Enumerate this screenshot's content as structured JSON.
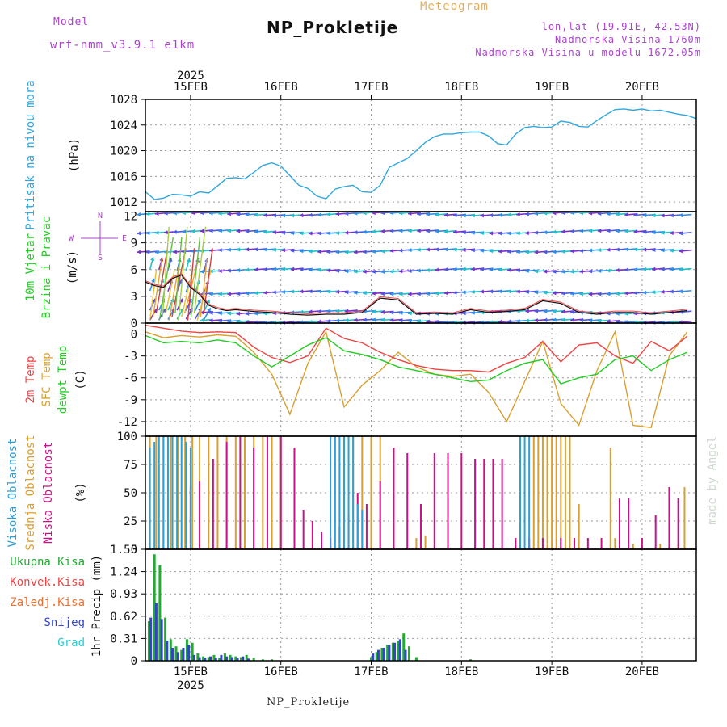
{
  "header": {
    "model_label": "Model",
    "model_name": "wrf-nmm_v3.9.1 e1km",
    "title": "NP_Prokletije",
    "meteogram_label": "Meteogram",
    "lonlat": "lon,lat (19.91E, 42.53N)",
    "elevation": "Nadmorska Visina 1760m",
    "model_elevation": "Nadmorska Visina u modelu 1672.05m",
    "footer_title": "NP_Prokletije",
    "watermark": "made by Angel"
  },
  "colors": {
    "pressure": "#2fa8e0",
    "temp2m": "#ee4444",
    "sfc": "#d9a030",
    "dewpt": "#22cc22",
    "high_cloud": "#2a9fd8",
    "mid_cloud": "#d9a030",
    "low_cloud": "#cc1188",
    "total_precip": "#22aa33",
    "snow": "#3344cc",
    "purple_text": "#aa44cc",
    "orange_text": "#e0b060"
  },
  "chart_data": [
    {
      "type": "line",
      "name": "pressure",
      "ylabel_main": "Pritisak na nivou mora",
      "ylabel_unit": "(hPa)",
      "ylim": [
        1010.5,
        1028
      ],
      "yticks": [
        1012,
        1016,
        1020,
        1024,
        1028
      ],
      "x": [
        0,
        0.1,
        0.2,
        0.3,
        0.4,
        0.5,
        0.6,
        0.7,
        0.8,
        0.9,
        1.0,
        1.1,
        1.2,
        1.3,
        1.4,
        1.5,
        1.6,
        1.7,
        1.8,
        1.9,
        2.0,
        2.1,
        2.2,
        2.3,
        2.4,
        2.5,
        2.6,
        2.7,
        2.8,
        2.9,
        3.0,
        3.1,
        3.2,
        3.3,
        3.4,
        3.5,
        3.6,
        3.7,
        3.8,
        3.9,
        4.0,
        4.1,
        4.2,
        4.3,
        4.4,
        4.5,
        4.6,
        4.7,
        4.8,
        4.9,
        5.0,
        5.1,
        5.2,
        5.3,
        5.4,
        5.5,
        5.6,
        5.7,
        5.8,
        5.9,
        6.0,
        6.1
      ],
      "values": [
        1013.6,
        1012.4,
        1012.6,
        1013.2,
        1013.1,
        1012.9,
        1013.6,
        1013.4,
        1014.5,
        1015.7,
        1015.8,
        1015.6,
        1016.6,
        1017.7,
        1018.1,
        1017.6,
        1016.1,
        1014.6,
        1014.1,
        1012.9,
        1012.5,
        1014.0,
        1014.4,
        1014.6,
        1013.6,
        1013.5,
        1014.6,
        1017.4,
        1018.1,
        1018.8,
        1020.0,
        1021.3,
        1022.2,
        1022.6,
        1022.6,
        1022.8,
        1022.9,
        1022.9,
        1022.3,
        1021.1,
        1020.9,
        1022.6,
        1023.6,
        1023.8,
        1023.6,
        1023.7,
        1024.6,
        1024.4,
        1023.8,
        1023.7,
        1024.7,
        1025.6,
        1026.4,
        1026.5,
        1026.3,
        1026.5,
        1026.2,
        1026.3,
        1026.0,
        1025.7,
        1025.5,
        1025.0
      ]
    },
    {
      "type": "line",
      "name": "wind",
      "ylabel_main": "10m Vjetar",
      "ylabel_sub": "Brzina i Pravac",
      "ylabel_unit": "(m/s)",
      "compass_n": "N",
      "compass_s": "S",
      "compass_w": "W",
      "compass_e": "E",
      "ylim": [
        0,
        12.5
      ],
      "yticks": [
        0,
        3,
        6,
        9,
        12
      ],
      "levels": [
        0.3,
        1.3,
        3.5,
        6.0,
        8.2,
        10.3,
        12.3
      ],
      "speed_x": [
        0,
        0.1,
        0.2,
        0.3,
        0.4,
        0.5,
        0.6,
        0.7,
        0.8,
        0.9,
        1.0,
        1.2,
        1.4,
        1.6,
        1.8,
        2.0,
        2.2,
        2.4,
        2.6,
        2.8,
        3.0,
        3.2,
        3.4,
        3.6,
        3.8,
        4.0,
        4.2,
        4.4,
        4.6,
        4.8,
        5.0,
        5.2,
        5.4,
        5.6,
        5.8,
        6.0
      ],
      "speed_values": [
        4.6,
        4.2,
        4.0,
        5.0,
        5.4,
        4.0,
        3.2,
        2.0,
        1.6,
        1.4,
        1.5,
        1.3,
        1.2,
        1.0,
        0.9,
        1.0,
        1.0,
        1.2,
        2.8,
        2.6,
        1.0,
        1.1,
        1.0,
        1.5,
        1.2,
        1.3,
        1.5,
        2.5,
        2.2,
        1.2,
        1.0,
        1.2,
        1.2,
        1.0,
        1.2,
        1.4
      ]
    },
    {
      "type": "line",
      "name": "temperature",
      "ylabel_t2m": "2m Temp",
      "ylabel_sfc": "SFC Temp",
      "ylabel_dew": "dewpt Temp",
      "ylabel_unit": "(C)",
      "ylim": [
        -14,
        1.5
      ],
      "yticks": [
        0,
        -3,
        -6,
        -9,
        -12
      ],
      "x": [
        0,
        0.2,
        0.4,
        0.6,
        0.8,
        1.0,
        1.2,
        1.4,
        1.6,
        1.8,
        2.0,
        2.2,
        2.4,
        2.6,
        2.8,
        3.0,
        3.2,
        3.4,
        3.6,
        3.8,
        4.0,
        4.2,
        4.4,
        4.6,
        4.8,
        5.0,
        5.2,
        5.4,
        5.6,
        5.8,
        6.0
      ],
      "series": [
        {
          "name": "2m Temp",
          "values": [
            1.2,
            0.8,
            0.4,
            0.2,
            0.3,
            0.2,
            -1.8,
            -3.2,
            -3.9,
            -3.0,
            0.8,
            -0.6,
            -1.2,
            -2.5,
            -3.5,
            -4.3,
            -4.8,
            -5.0,
            -5.0,
            -5.2,
            -4.0,
            -3.2,
            -1.0,
            -3.8,
            -1.5,
            -1.2,
            -3.0,
            -4.0,
            -1.0,
            -2.3,
            -0.3
          ]
        },
        {
          "name": "SFC Temp",
          "values": [
            0.3,
            -0.5,
            -0.2,
            -0.4,
            -0.1,
            -0.3,
            -2.5,
            -5.5,
            -11.0,
            -4.0,
            0.3,
            -10.0,
            -7.0,
            -5.0,
            -2.5,
            -4.5,
            -5.5,
            -5.8,
            -5.5,
            -8.0,
            -12.0,
            -6.5,
            -1.0,
            -9.5,
            -12.5,
            -5.0,
            0.3,
            -12.5,
            -12.8,
            -3.0,
            0.3
          ]
        },
        {
          "name": "dewpt Temp",
          "values": [
            -0.2,
            -1.2,
            -1.0,
            -1.2,
            -0.8,
            -1.2,
            -3.0,
            -4.5,
            -3.0,
            -1.5,
            -0.5,
            -2.3,
            -2.8,
            -3.5,
            -4.5,
            -5.0,
            -5.5,
            -6.0,
            -6.5,
            -6.3,
            -5.0,
            -4.0,
            -3.5,
            -6.8,
            -6.0,
            -5.5,
            -3.5,
            -3.0,
            -5.0,
            -3.5,
            -2.5
          ]
        }
      ]
    },
    {
      "type": "bar",
      "name": "clouds",
      "ylabel_high": "Visoka Oblacnost",
      "ylabel_mid": "Srednja Oblacnost",
      "ylabel_low": "Niska Oblacnost",
      "ylabel_unit": "(%)",
      "ylim": [
        0,
        100
      ],
      "yticks": [
        0,
        25,
        50,
        75,
        100
      ],
      "series": [
        {
          "name": "Visoka Oblacnost",
          "x": [
            0.05,
            0.1,
            0.15,
            0.2,
            0.25,
            0.3,
            0.35,
            0.4,
            0.45,
            0.5,
            2.05,
            2.1,
            2.15,
            2.2,
            2.25,
            2.3,
            2.35,
            2.4,
            4.15,
            4.2,
            4.25
          ],
          "values": [
            90,
            95,
            100,
            100,
            100,
            100,
            100,
            100,
            95,
            90,
            100,
            100,
            100,
            100,
            100,
            100,
            40,
            35,
            100,
            100,
            100
          ]
        },
        {
          "name": "Srednja Oblacnost",
          "x": [
            0.05,
            0.12,
            0.2,
            0.28,
            0.36,
            0.44,
            0.52,
            0.6,
            0.7,
            0.8,
            0.9,
            1.0,
            1.1,
            1.2,
            1.3,
            1.4,
            1.5,
            2.1,
            2.2,
            2.3,
            2.4,
            2.5,
            2.6,
            3.0,
            3.1,
            4.3,
            4.35,
            4.4,
            4.45,
            4.5,
            4.55,
            4.6,
            4.65,
            4.7,
            4.8,
            5.15,
            5.2,
            5.4,
            5.7,
            5.8,
            5.9,
            5.97
          ],
          "values": [
            100,
            100,
            100,
            100,
            100,
            100,
            100,
            100,
            100,
            100,
            100,
            100,
            100,
            100,
            100,
            100,
            100,
            100,
            100,
            100,
            100,
            100,
            100,
            10,
            12,
            100,
            100,
            100,
            100,
            100,
            100,
            100,
            100,
            100,
            40,
            90,
            10,
            5,
            5,
            5,
            5,
            55
          ]
        },
        {
          "name": "Niska Oblacnost",
          "x": [
            0.5,
            0.6,
            0.75,
            0.9,
            1.05,
            1.2,
            1.35,
            1.5,
            1.65,
            1.75,
            1.85,
            1.95,
            2.05,
            2.15,
            2.25,
            2.35,
            2.45,
            2.6,
            2.75,
            2.9,
            3.05,
            3.2,
            3.35,
            3.5,
            3.65,
            3.75,
            3.85,
            3.95,
            4.1,
            4.25,
            4.4,
            4.6,
            4.75,
            4.9,
            5.05,
            5.25,
            5.35,
            5.5,
            5.65,
            5.8,
            5.9
          ],
          "values": [
            55,
            60,
            80,
            95,
            100,
            90,
            100,
            100,
            90,
            35,
            25,
            15,
            10,
            20,
            30,
            50,
            40,
            60,
            90,
            85,
            40,
            85,
            85,
            85,
            80,
            80,
            80,
            80,
            10,
            10,
            10,
            10,
            10,
            10,
            10,
            45,
            45,
            10,
            30,
            55,
            45
          ]
        }
      ]
    },
    {
      "type": "bar",
      "name": "precipitation",
      "legend_total": "Ukupna Kisa",
      "legend_conv": "Konvek.Kisa",
      "legend_frozen": "Zaledj.Kisa",
      "legend_snow": "Snijeg",
      "legend_graupel": "Grad",
      "ylabel_unit": "1hr Precip (mm)",
      "ylim": [
        0,
        1.55
      ],
      "yticks": [
        0,
        0.31,
        0.62,
        0.93,
        1.24,
        1.55
      ],
      "series": [
        {
          "name": "Ukupna Kisa",
          "x": [
            0.04,
            0.1,
            0.16,
            0.22,
            0.28,
            0.34,
            0.4,
            0.46,
            0.52,
            0.58,
            0.64,
            0.7,
            0.76,
            0.82,
            0.88,
            0.94,
            1.0,
            1.06,
            1.12,
            1.2,
            1.3,
            1.4,
            2.5,
            2.56,
            2.62,
            2.68,
            2.74,
            2.8,
            2.86,
            2.92,
            3.0,
            3.6
          ],
          "values": [
            0.55,
            1.48,
            1.33,
            0.6,
            0.3,
            0.2,
            0.15,
            0.3,
            0.25,
            0.1,
            0.06,
            0.05,
            0.08,
            0.04,
            0.1,
            0.08,
            0.06,
            0.05,
            0.08,
            0.04,
            0.02,
            0.02,
            0.05,
            0.12,
            0.18,
            0.22,
            0.25,
            0.28,
            0.38,
            0.2,
            0.05,
            0.02
          ]
        },
        {
          "name": "Snijeg",
          "x": [
            0.06,
            0.12,
            0.18,
            0.24,
            0.3,
            0.36,
            0.42,
            0.48,
            0.54,
            0.6,
            0.66,
            0.72,
            0.78,
            0.84,
            0.9,
            0.96,
            1.02,
            1.08,
            1.14,
            2.52,
            2.58,
            2.64,
            2.7,
            2.76,
            2.82,
            2.88
          ],
          "values": [
            0.6,
            0.8,
            0.58,
            0.28,
            0.18,
            0.12,
            0.18,
            0.22,
            0.08,
            0.05,
            0.04,
            0.06,
            0.04,
            0.08,
            0.06,
            0.05,
            0.04,
            0.06,
            0.03,
            0.1,
            0.15,
            0.18,
            0.22,
            0.25,
            0.3,
            0.15
          ]
        }
      ]
    }
  ],
  "time_axis": {
    "year_top": "2025",
    "year_bottom": "2025",
    "labels": [
      "15FEB",
      "16FEB",
      "17FEB",
      "18FEB",
      "19FEB",
      "20FEB"
    ],
    "positions": [
      0.5,
      1.5,
      2.5,
      3.5,
      4.5,
      5.5
    ],
    "xlim": [
      0,
      6.1
    ]
  }
}
